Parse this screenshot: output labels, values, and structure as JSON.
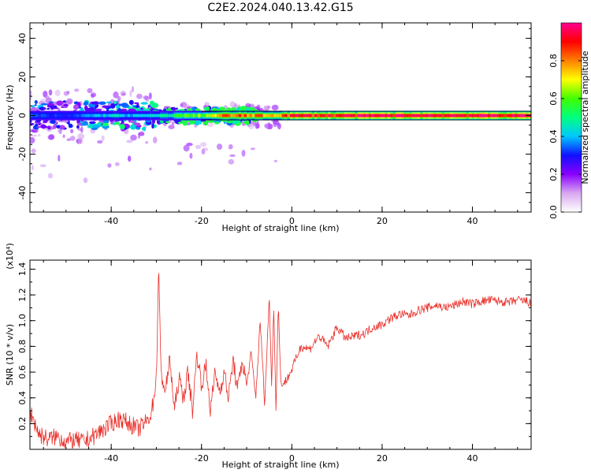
{
  "title": "C2E2.2024.040.13.42.G15",
  "chart_data": [
    {
      "type": "heatmap",
      "xlabel": "Height of straight line (km)",
      "ylabel": "Frequency (Hz)",
      "xlim": [
        -58,
        53
      ],
      "ylim": [
        -50,
        48
      ],
      "xticks": [
        -40,
        -20,
        0,
        20,
        40
      ],
      "yticks": [
        -40,
        -20,
        0,
        20,
        40
      ],
      "colorbar": {
        "label": "Normalized spectral amplitude",
        "range": [
          0.0,
          1.0
        ],
        "ticks": [
          0.0,
          0.2,
          0.4,
          0.6,
          0.8
        ],
        "tick_labels": [
          "0.0",
          "0.2",
          "0.4",
          "0.6",
          "0.8"
        ],
        "colormap": [
          "#ffffff",
          "#d8a8f0",
          "#8a00ff",
          "#1010ff",
          "#00c8ff",
          "#00ff80",
          "#40ff00",
          "#ffff00",
          "#ff8000",
          "#ff0000",
          "#ff0090"
        ]
      },
      "dominant_band": {
        "frequency_hz": 0,
        "x_range": [
          -58,
          53
        ],
        "amplitude_by_height": [
          [
            -58,
            0.35
          ],
          [
            -50,
            0.3
          ],
          [
            -45,
            0.4
          ],
          [
            -40,
            0.45
          ],
          [
            -35,
            0.4
          ],
          [
            -30,
            0.45
          ],
          [
            -25,
            0.6
          ],
          [
            -20,
            0.65
          ],
          [
            -15,
            0.85
          ],
          [
            -10,
            0.85
          ],
          [
            -5,
            0.8
          ],
          [
            0,
            0.95
          ],
          [
            10,
            0.95
          ],
          [
            20,
            1.0
          ],
          [
            30,
            1.0
          ],
          [
            40,
            1.0
          ],
          [
            53,
            1.0
          ]
        ]
      }
    },
    {
      "type": "line",
      "xlabel": "Height of straight line (km)",
      "ylabel": "SNR (10 * v/v)",
      "y_scale_label": "(x10⁴)",
      "xlim": [
        -58,
        53
      ],
      "ylim": [
        0.0,
        1.47
      ],
      "xticks": [
        -40,
        -20,
        0,
        20,
        40
      ],
      "yticks": [
        0.2,
        0.4,
        0.6,
        0.8,
        1.0,
        1.2,
        1.4
      ],
      "ytick_labels": [
        "0.2",
        "0.4",
        "0.6",
        "0.8",
        "1.0",
        "1.2",
        "1.4"
      ],
      "color": "#e8302a",
      "series": [
        {
          "x": [
            -58,
            -56,
            -54,
            -52,
            -50,
            -48,
            -46,
            -44,
            -42,
            -40,
            -38,
            -36,
            -34,
            -32,
            -31,
            -30,
            -29.5,
            -29,
            -28,
            -27,
            -26,
            -25,
            -24,
            -23,
            -22,
            -21,
            -20,
            -19,
            -18,
            -17,
            -16,
            -15,
            -14,
            -13,
            -12,
            -11,
            -10,
            -9,
            -8,
            -7,
            -6,
            -5,
            -4.5,
            -4,
            -3.5,
            -3,
            -2.5,
            -2,
            -1,
            0,
            2,
            4,
            6,
            8,
            10,
            12,
            14,
            16,
            18,
            20,
            22,
            24,
            26,
            28,
            30,
            32,
            34,
            36,
            38,
            40,
            42,
            44,
            46,
            48,
            50,
            52,
            53
          ],
          "y": [
            0.3,
            0.12,
            0.08,
            0.1,
            0.06,
            0.07,
            0.06,
            0.1,
            0.15,
            0.2,
            0.24,
            0.2,
            0.16,
            0.22,
            0.3,
            0.55,
            1.45,
            0.6,
            0.45,
            0.7,
            0.3,
            0.55,
            0.4,
            0.6,
            0.3,
            0.75,
            0.5,
            0.65,
            0.3,
            0.6,
            0.45,
            0.6,
            0.4,
            0.7,
            0.45,
            0.7,
            0.5,
            0.75,
            0.4,
            1.0,
            0.35,
            1.2,
            0.5,
            1.1,
            0.3,
            1.15,
            0.55,
            0.5,
            0.55,
            0.62,
            0.8,
            0.78,
            0.88,
            0.8,
            0.95,
            0.86,
            0.88,
            0.9,
            0.95,
            0.97,
            1.02,
            1.05,
            1.04,
            1.08,
            1.1,
            1.12,
            1.1,
            1.12,
            1.15,
            1.13,
            1.15,
            1.16,
            1.15,
            1.14,
            1.16,
            1.15,
            1.13
          ]
        }
      ]
    }
  ]
}
